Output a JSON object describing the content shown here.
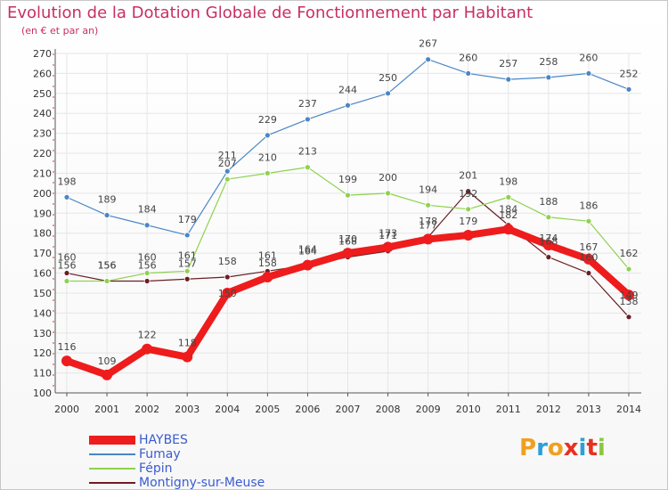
{
  "title": "Evolution de la Dotation Globale de Fonctionnement par Habitant",
  "subtitle": "(en € et par an)",
  "logo": {
    "text": "Proxiti",
    "letter_colors": [
      "#f0a020",
      "#2aa0d8",
      "#f0a020",
      "#e83020",
      "#2aa0d8",
      "#e83020",
      "#8dc63f"
    ]
  },
  "chart_data": {
    "type": "line",
    "title": "Evolution de la Dotation Globale de Fonctionnement par Habitant",
    "subtitle": "(en € et par an)",
    "xlabel": "",
    "ylabel": "",
    "x": [
      2000,
      2001,
      2002,
      2003,
      2004,
      2005,
      2006,
      2007,
      2008,
      2009,
      2010,
      2011,
      2012,
      2013,
      2014
    ],
    "ylim": [
      100,
      270
    ],
    "yticks": [
      100,
      110,
      120,
      130,
      140,
      150,
      160,
      170,
      180,
      190,
      200,
      210,
      220,
      230,
      240,
      250,
      260,
      270
    ],
    "grid": true,
    "legend_position": "bottom-left",
    "series": [
      {
        "name": "HAYBES",
        "color": "#ee1c1c",
        "values": [
          116,
          109,
          122,
          118,
          150,
          158,
          164,
          170,
          173,
          177,
          179,
          182,
          174,
          167,
          149
        ]
      },
      {
        "name": "Fumay",
        "color": "#4a86c5",
        "values": [
          198,
          189,
          184,
          179,
          211,
          229,
          237,
          244,
          250,
          267,
          260,
          257,
          258,
          260,
          252
        ]
      },
      {
        "name": "Fépin",
        "color": "#8ed24f",
        "values": [
          156,
          156,
          160,
          161,
          207,
          210,
          213,
          199,
          200,
          194,
          192,
          198,
          188,
          186,
          162
        ]
      },
      {
        "name": "Montigny-sur-Meuse",
        "color": "#6b1e24",
        "values": [
          160,
          156,
          156,
          157,
          158,
          161,
          164,
          168,
          171,
          178,
          201,
          184,
          168,
          160,
          138
        ]
      }
    ]
  }
}
